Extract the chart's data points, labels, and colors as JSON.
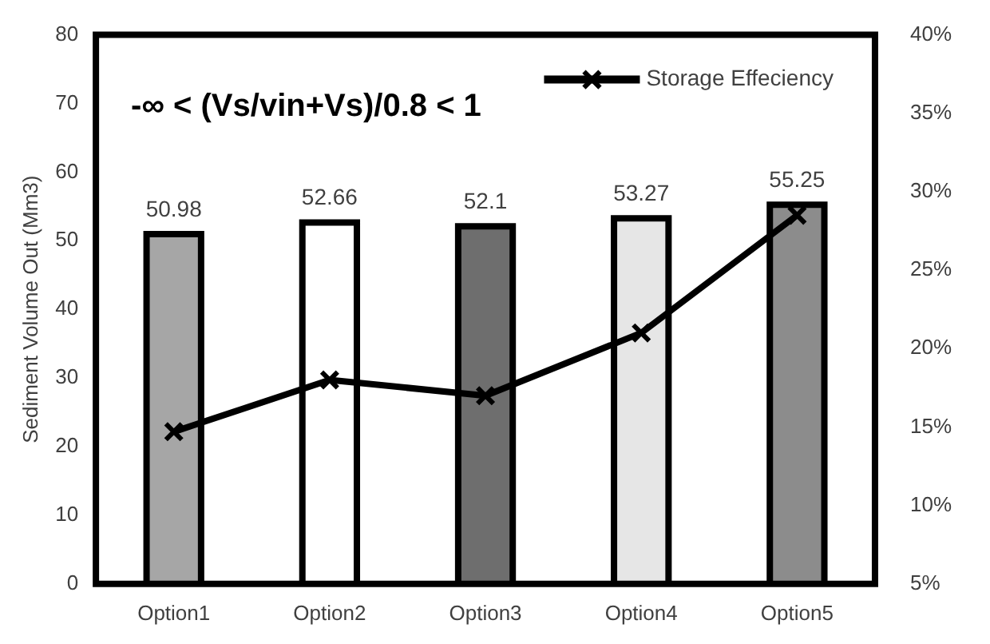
{
  "chart_data": {
    "type": "bar",
    "categories": [
      "Option1",
      "Option2",
      "Option3",
      "Option4",
      "Option5"
    ],
    "series": [
      {
        "colors": [
          "#a6a6a6",
          "#ffffff",
          "#6e6e6e",
          "#e6e6e6",
          "#8c8c8c"
        ],
        "values": [
          50.98,
          52.66,
          52.1,
          53.27,
          55.25
        ],
        "value_labels": [
          "50.98",
          "52.66",
          "52.1",
          "53.27",
          "55.25"
        ]
      },
      {
        "type": "line",
        "axis": "y2",
        "name": "Storage Effeciency",
        "color": "#000000",
        "values": [
          14.7,
          18.0,
          17.0,
          21.0,
          28.5
        ]
      }
    ],
    "ylabel": "Sediment Volume Out (Mm3)",
    "ylim": [
      0,
      80
    ],
    "yticks": [
      0,
      10,
      20,
      30,
      40,
      50,
      60,
      70,
      80
    ],
    "y2lim": [
      5,
      40
    ],
    "y2ticks": [
      {
        "value": 5,
        "label": "5%"
      },
      {
        "value": 10,
        "label": "10%"
      },
      {
        "value": 15,
        "label": "15%"
      },
      {
        "value": 20,
        "label": "20%"
      },
      {
        "value": 25,
        "label": "25%"
      },
      {
        "value": 30,
        "label": "30%"
      },
      {
        "value": 35,
        "label": "35%"
      },
      {
        "value": 40,
        "label": "40%"
      }
    ],
    "annotations": [
      "-∞ < (Vs/vin+Vs)/0.8 < 1"
    ],
    "grid": false,
    "legend": "top right",
    "marker": "cross",
    "line_style": "solid"
  }
}
